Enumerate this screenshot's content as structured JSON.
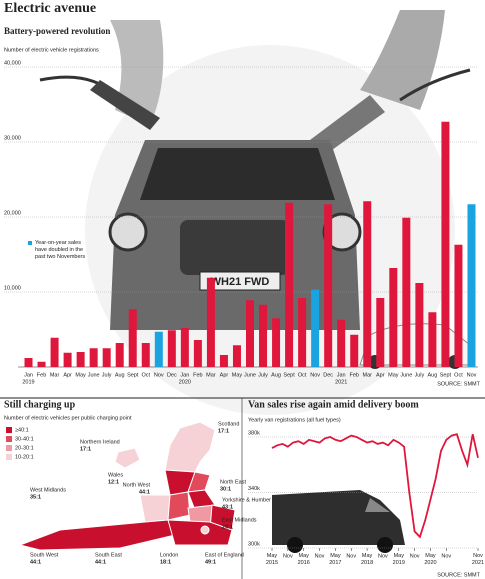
{
  "header": {
    "title": "Electric avenue"
  },
  "chart_data": [
    {
      "type": "bar",
      "title": "Battery-powered revolution",
      "y_label": "Number of electric vehicle registrations",
      "categories": [
        "Jan",
        "Feb",
        "Mar",
        "Apr",
        "May",
        "June",
        "July",
        "Aug",
        "Sept",
        "Oct",
        "Nov",
        "Dec",
        "Jan",
        "Feb",
        "Mar",
        "Apr",
        "May",
        "June",
        "July",
        "Aug",
        "Sept",
        "Oct",
        "Nov",
        "Dec",
        "Jan",
        "Feb",
        "Mar",
        "Apr",
        "May",
        "June",
        "July",
        "Aug",
        "Sept",
        "Oct",
        "Nov"
      ],
      "years": [
        "2019",
        "2020",
        "2021"
      ],
      "values": [
        1200,
        700,
        3900,
        1900,
        2000,
        2500,
        2500,
        3200,
        7700,
        3200,
        4700,
        4900,
        5200,
        3600,
        11900,
        1600,
        2900,
        8900,
        8300,
        6500,
        21900,
        9200,
        10300,
        21700,
        6300,
        4300,
        22100,
        9200,
        13200,
        19900,
        11200,
        7300,
        32700,
        16300,
        21700
      ],
      "colors": [
        "#e0173c",
        "#e0173c",
        "#e0173c",
        "#e0173c",
        "#e0173c",
        "#e0173c",
        "#e0173c",
        "#e0173c",
        "#e0173c",
        "#e0173c",
        "#1aa3de",
        "#e0173c",
        "#e0173c",
        "#e0173c",
        "#e0173c",
        "#e0173c",
        "#e0173c",
        "#e0173c",
        "#e0173c",
        "#e0173c",
        "#e0173c",
        "#e0173c",
        "#1aa3de",
        "#e0173c",
        "#e0173c",
        "#e0173c",
        "#e0173c",
        "#e0173c",
        "#e0173c",
        "#e0173c",
        "#e0173c",
        "#e0173c",
        "#e0173c",
        "#e0173c",
        "#1aa3de"
      ],
      "ylim": [
        0,
        40000
      ],
      "yticks": [
        {
          "value": 10000,
          "label": "10,000"
        },
        {
          "value": 20000,
          "label": "20,000"
        },
        {
          "value": 30000,
          "label": "30,000"
        },
        {
          "value": 40000,
          "label": "40,000"
        }
      ],
      "grid": true,
      "legend": {
        "label": "Year-on-year sales have doubled in the past two Novembers",
        "color": "#1aa3de"
      },
      "source": "SOURCE: SMMT"
    },
    {
      "type": "map",
      "title": "Still charging up",
      "subtitle": "Number of electric vehicles per public charging point",
      "legend": [
        {
          "label": "≥40:1",
          "color": "#c8102e"
        },
        {
          "label": "30-40:1",
          "color": "#e04a5a"
        },
        {
          "label": "20-30:1",
          "color": "#ef9aa3"
        },
        {
          "label": "10-20:1",
          "color": "#f6d2d6"
        }
      ],
      "regions": [
        {
          "name": "Scotland",
          "ratio": "17:1"
        },
        {
          "name": "Northern Ireland",
          "ratio": "17:1"
        },
        {
          "name": "Wales",
          "ratio": "12:1"
        },
        {
          "name": "North West",
          "ratio": "44:1"
        },
        {
          "name": "North East",
          "ratio": "30:1"
        },
        {
          "name": "West Midlands",
          "ratio": "35:1"
        },
        {
          "name": "Yorkshire & Humber",
          "ratio": "43:1"
        },
        {
          "name": "East Midlands",
          "ratio": "24:1"
        },
        {
          "name": "South West",
          "ratio": "44:1"
        },
        {
          "name": "South East",
          "ratio": "44:1"
        },
        {
          "name": "London",
          "ratio": "18:1"
        },
        {
          "name": "East of England",
          "ratio": "49:1"
        }
      ],
      "source": "SOURCE: SMMT"
    },
    {
      "type": "line",
      "title": "Van sales rise again amid delivery boom",
      "y_label": "Yearly van registrations (all fuel types)",
      "x": [
        "2015-05",
        "2015-07",
        "2015-09",
        "2015-11",
        "2016-01",
        "2016-03",
        "2016-05",
        "2016-07",
        "2016-09",
        "2016-11",
        "2017-01",
        "2017-03",
        "2017-05",
        "2017-07",
        "2017-09",
        "2017-11",
        "2018-01",
        "2018-03",
        "2018-05",
        "2018-07",
        "2018-09",
        "2018-11",
        "2019-01",
        "2019-03",
        "2019-05",
        "2019-07",
        "2019-09",
        "2019-11",
        "2020-01",
        "2020-03",
        "2020-05",
        "2020-07",
        "2020-09",
        "2020-11",
        "2021-01",
        "2021-03",
        "2021-05",
        "2021-07",
        "2021-09",
        "2021-11"
      ],
      "values": [
        372000,
        374000,
        375000,
        373000,
        376000,
        377000,
        375000,
        378000,
        377000,
        376000,
        379000,
        380000,
        378000,
        377000,
        379000,
        381000,
        380000,
        378000,
        376000,
        377000,
        375000,
        376000,
        374000,
        378000,
        376000,
        373000,
        340000,
        312000,
        308000,
        320000,
        335000,
        350000,
        370000,
        378000,
        381000,
        382000,
        370000,
        360000,
        382000,
        365000
      ],
      "color": "#e0173c",
      "ylim": [
        300000,
        380000
      ],
      "yticks": [
        {
          "value": 300000,
          "label": "300k"
        },
        {
          "value": 340000,
          "label": "340k"
        },
        {
          "value": 380000,
          "label": "380k"
        }
      ],
      "xticks": [
        {
          "value": "2015-05",
          "label": "May 2015"
        },
        {
          "value": "2015-11",
          "label": "Nov"
        },
        {
          "value": "2016-05",
          "label": "May 2016"
        },
        {
          "value": "2016-11",
          "label": "Nov"
        },
        {
          "value": "2017-05",
          "label": "May 2017"
        },
        {
          "value": "2017-11",
          "label": "Nov"
        },
        {
          "value": "2018-05",
          "label": "May 2018"
        },
        {
          "value": "2018-11",
          "label": "Nov"
        },
        {
          "value": "2019-05",
          "label": "May 2019"
        },
        {
          "value": "2019-11",
          "label": "Nov"
        },
        {
          "value": "2020-05",
          "label": "May 2020"
        },
        {
          "value": "2020-11",
          "label": "Nov"
        },
        {
          "value": "2021-11",
          "label": "Nov 2021"
        }
      ],
      "source": "SOURCE: SMMT"
    }
  ]
}
